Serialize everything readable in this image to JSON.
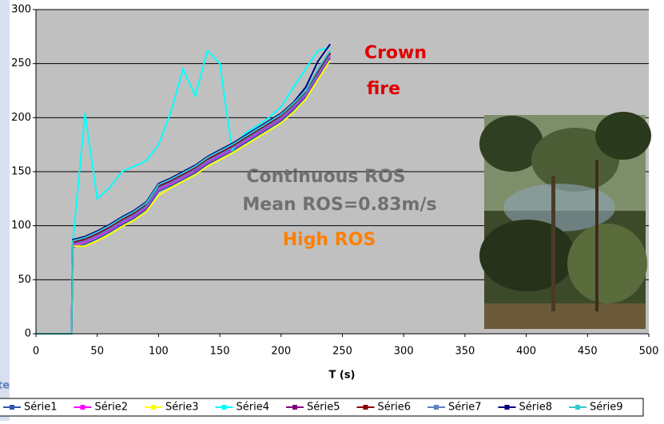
{
  "chart_data": {
    "type": "line",
    "x_label": "T (s)",
    "x": [
      0,
      10,
      20,
      29,
      30,
      40,
      50,
      60,
      70,
      80,
      90,
      100,
      110,
      120,
      130,
      140,
      150,
      160,
      170,
      180,
      190,
      200,
      210,
      220,
      230,
      240
    ],
    "xlim": [
      0,
      500
    ],
    "xticks": [
      0,
      50,
      100,
      150,
      200,
      250,
      300,
      350,
      400,
      450,
      500
    ],
    "ylim": [
      0,
      300
    ],
    "yticks": [
      0,
      50,
      100,
      150,
      200,
      250,
      300
    ],
    "grid": true,
    "series": [
      {
        "name": "Série1",
        "color": "#3355aa",
        "values": [
          0,
          0,
          0,
          0,
          80,
          83,
          88,
          94,
          101,
          107,
          115,
          132,
          137,
          143,
          149,
          157,
          163,
          169,
          176,
          183,
          190,
          197,
          207,
          219,
          237,
          255
        ]
      },
      {
        "name": "Série2",
        "color": "#ff00ff",
        "values": [
          0,
          0,
          0,
          0,
          82,
          85,
          90,
          96,
          103,
          109,
          117,
          134,
          139,
          145,
          151,
          159,
          165,
          171,
          178,
          185,
          192,
          199,
          209,
          221,
          239,
          257
        ]
      },
      {
        "name": "Série3",
        "color": "#ffff00",
        "values": [
          0,
          0,
          0,
          0,
          81,
          81,
          86,
          92,
          99,
          105,
          113,
          128,
          135,
          141,
          147,
          155,
          161,
          167,
          174,
          181,
          188,
          195,
          205,
          217,
          235,
          253
        ]
      },
      {
        "name": "Série4",
        "color": "#00ffff",
        "values": [
          0,
          0,
          0,
          0,
          84,
          204,
          125,
          135,
          150,
          155,
          160,
          175,
          205,
          245,
          220,
          262,
          250,
          170,
          185,
          192,
          200,
          210,
          228,
          245,
          262,
          265
        ]
      },
      {
        "name": "Série5",
        "color": "#800080",
        "values": [
          0,
          0,
          0,
          0,
          85,
          88,
          93,
          99,
          106,
          112,
          120,
          137,
          142,
          148,
          154,
          162,
          168,
          174,
          181,
          188,
          195,
          202,
          212,
          224,
          242,
          260
        ]
      },
      {
        "name": "Série6",
        "color": "#8b0000",
        "values": [
          0,
          0,
          0,
          0,
          84,
          87,
          92,
          98,
          105,
          111,
          119,
          136,
          141,
          147,
          153,
          161,
          167,
          173,
          180,
          187,
          194,
          201,
          211,
          223,
          241,
          259
        ]
      },
      {
        "name": "Série7",
        "color": "#5f7fbf",
        "values": [
          0,
          0,
          0,
          0,
          83,
          86,
          91,
          97,
          104,
          110,
          118,
          135,
          140,
          146,
          152,
          160,
          166,
          172,
          179,
          186,
          193,
          200,
          210,
          222,
          240,
          258
        ]
      },
      {
        "name": "Série8",
        "color": "#000080",
        "values": [
          0,
          0,
          0,
          0,
          87,
          90,
          95,
          101,
          108,
          114,
          122,
          139,
          144,
          150,
          156,
          164,
          170,
          176,
          183,
          190,
          197,
          204,
          214,
          228,
          252,
          268
        ]
      },
      {
        "name": "Série9",
        "color": "#33cccc",
        "values": [
          0,
          0,
          0,
          0,
          86,
          89,
          94,
          100,
          107,
          113,
          121,
          138,
          143,
          149,
          155,
          163,
          169,
          175,
          182,
          189,
          196,
          203,
          213,
          225,
          245,
          262
        ]
      }
    ],
    "annotations": [
      "Crown",
      "fire",
      "Continuous ROS",
      "Mean ROS=0.83m/s",
      "High ROS"
    ],
    "edge_text": "te"
  }
}
